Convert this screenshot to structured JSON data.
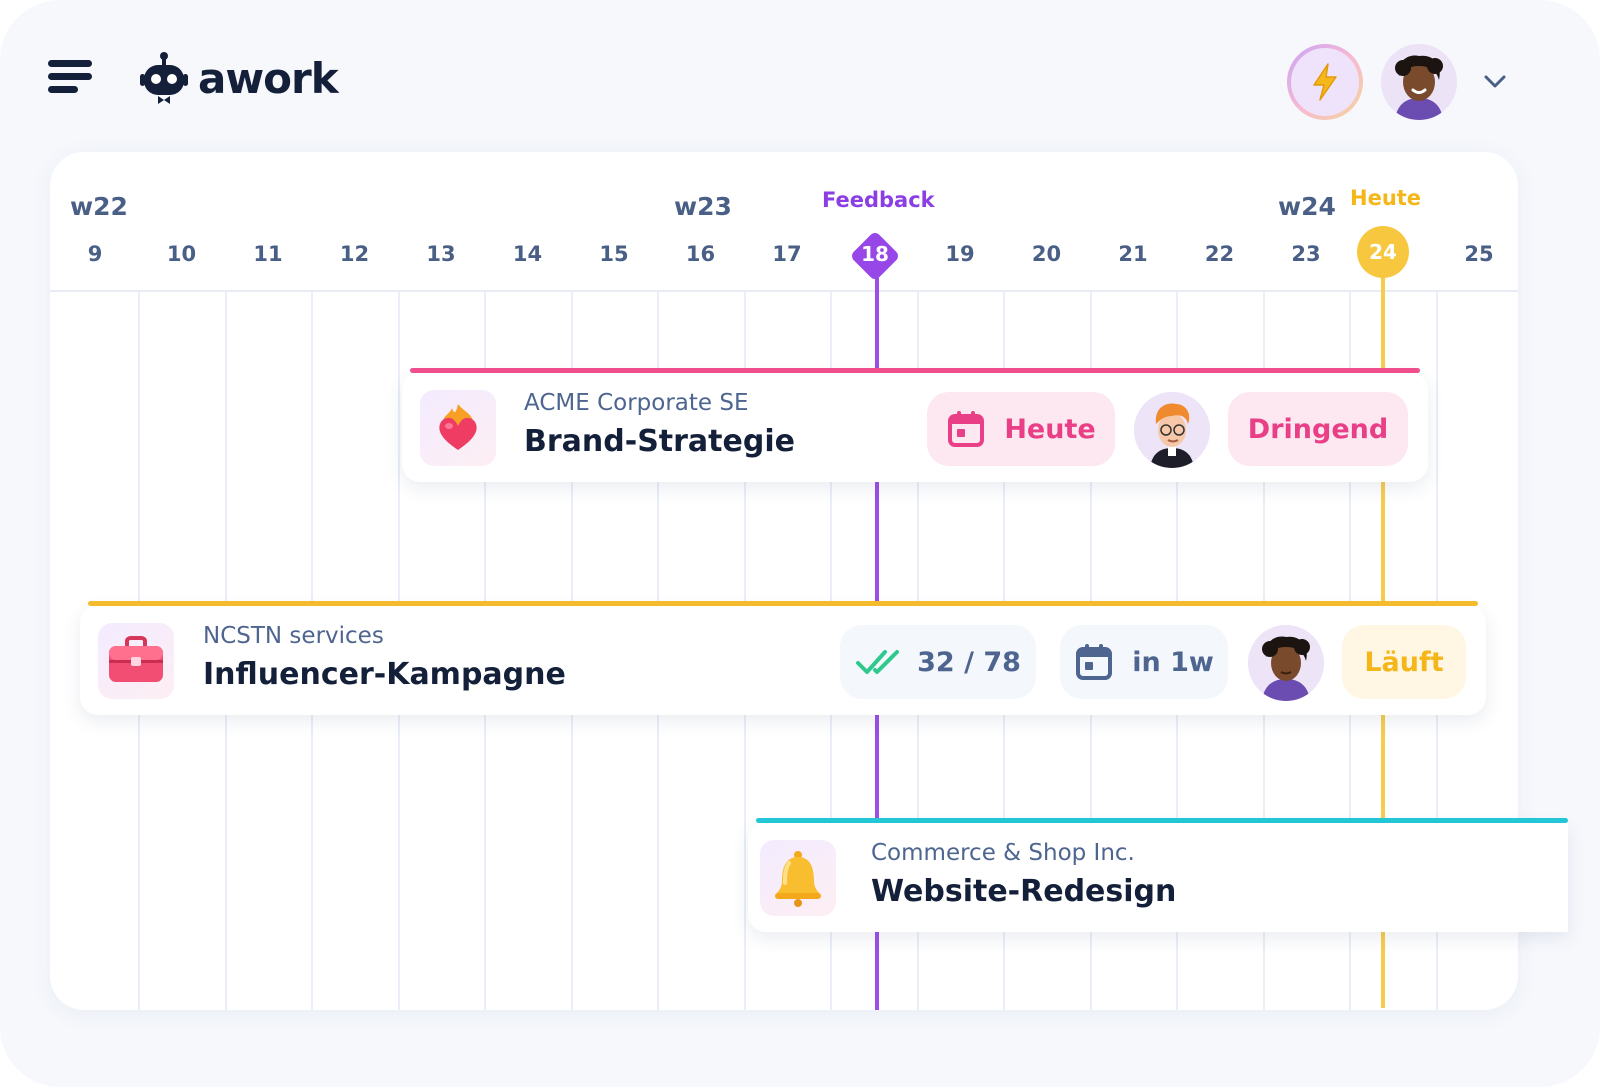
{
  "app": {
    "name": "awork"
  },
  "header": {
    "menu_icon": "hamburger-icon",
    "bolt_icon": "lightning-icon",
    "chevron_icon": "chevron-down-icon"
  },
  "timeline": {
    "weeks": [
      {
        "label": "w22"
      },
      {
        "label": "w23"
      },
      {
        "label": "w24"
      }
    ],
    "days": [
      "9",
      "10",
      "11",
      "12",
      "13",
      "14",
      "15",
      "16",
      "17",
      "18",
      "19",
      "20",
      "21",
      "22",
      "23",
      "24",
      "25"
    ],
    "milestone": {
      "label": "Feedback",
      "day": "18",
      "color": "#9747e8"
    },
    "today": {
      "label": "Heute",
      "day": "24",
      "color": "#f8c740"
    }
  },
  "tasks": [
    {
      "client": "ACME Corporate SE",
      "title": "Brand-Strategie",
      "icon": "heart-on-fire-icon",
      "accent": "#ef4f8d",
      "due_label": "Heute",
      "priority_label": "Dringend"
    },
    {
      "client": "NCSTN services",
      "title": "Influencer-Kampagne",
      "icon": "toolbox-icon",
      "accent": "#f4bb2d",
      "progress_text": "32 / 78",
      "progress_done": 32,
      "progress_total": 78,
      "due_label": "in 1w",
      "status_label": "Läuft"
    },
    {
      "client": "Commerce & Shop Inc.",
      "title": "Website-Redesign",
      "icon": "bell-icon",
      "accent": "#22c6d4"
    }
  ]
}
